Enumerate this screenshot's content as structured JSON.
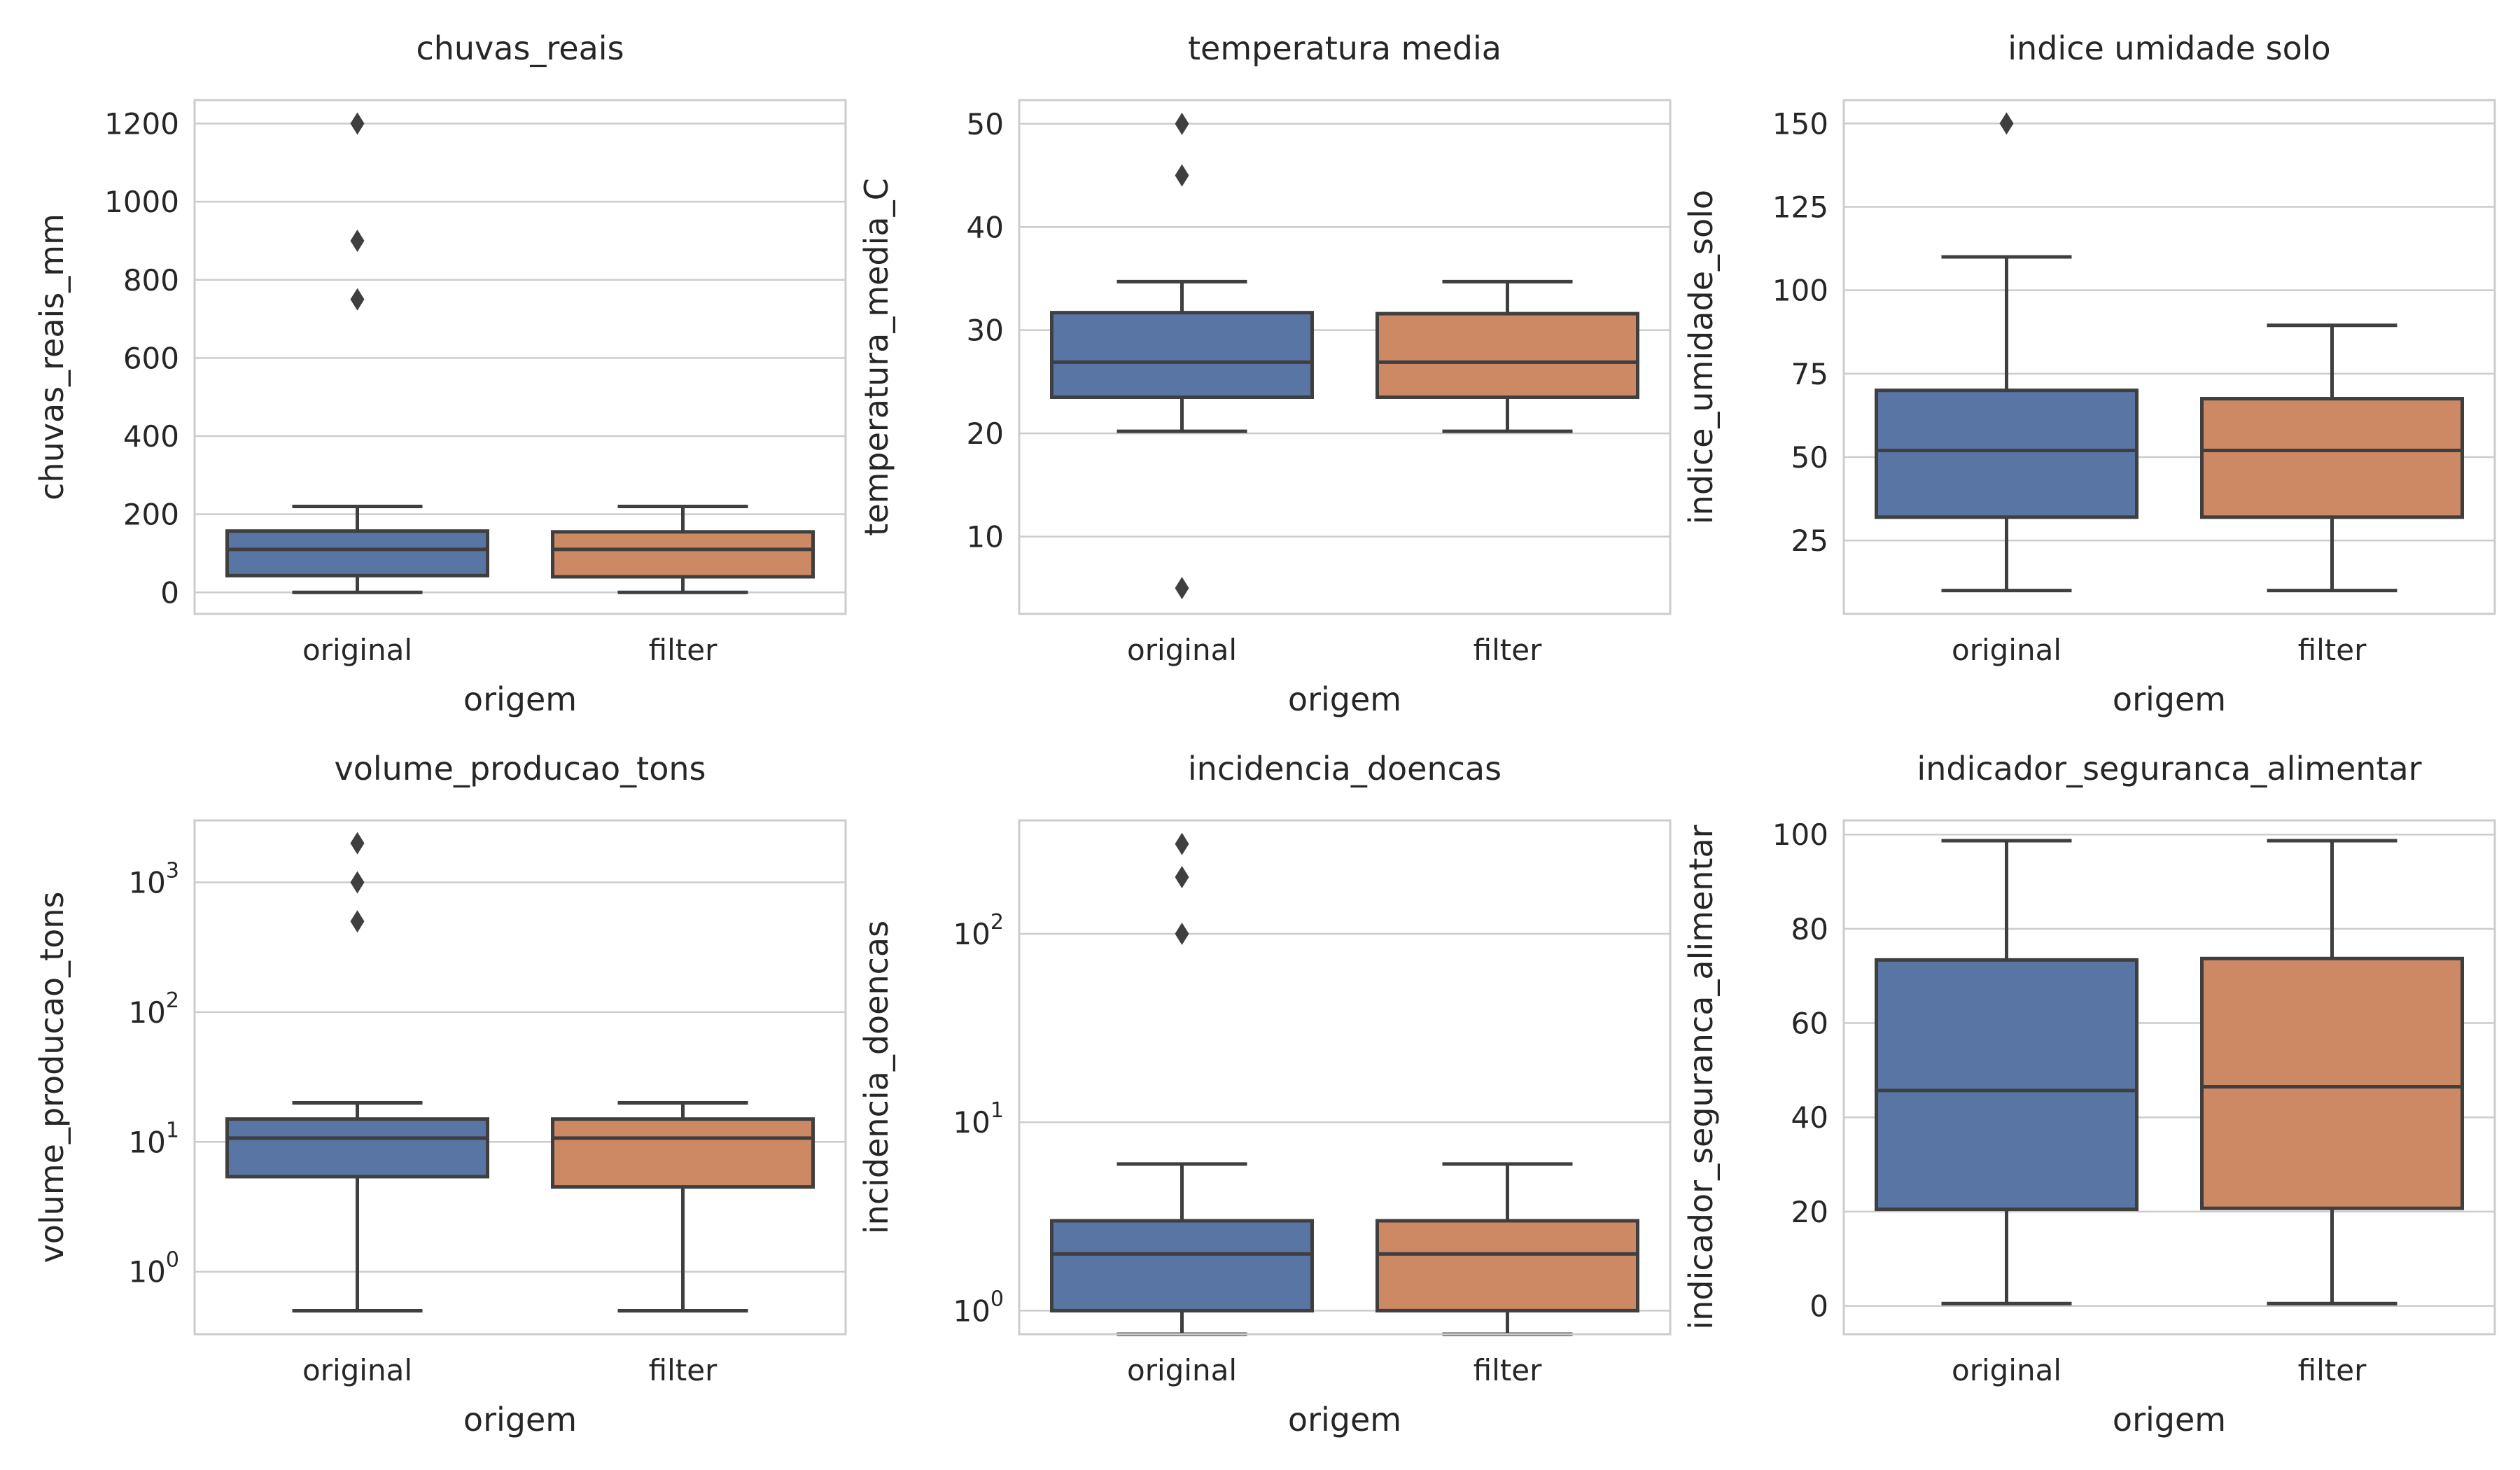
{
  "figure": {
    "colors": {
      "original": "#5875a4",
      "filter": "#cc8963",
      "edge": "#3f3f3f",
      "grid": "#cccccc",
      "frame": "#cccccc",
      "text": "#262626"
    }
  },
  "chart_data": [
    {
      "type": "box",
      "title": "chuvas_reais",
      "xlabel": "origem",
      "ylabel": "chuvas_reais_mm",
      "scale": "linear",
      "ylim": [
        -55,
        1260
      ],
      "yticks": [
        0,
        200,
        400,
        600,
        800,
        1000,
        1200
      ],
      "ytick_labels": [
        "0",
        "200",
        "400",
        "600",
        "800",
        "1000",
        "1200"
      ],
      "grid": true,
      "categories": [
        "original",
        "filter"
      ],
      "series": [
        {
          "category": "original",
          "whislo": 0,
          "q1": 43,
          "median": 110,
          "q3": 157,
          "whishi": 220,
          "fliers": [
            750,
            900,
            1200
          ]
        },
        {
          "category": "filter",
          "whislo": 0,
          "q1": 40,
          "median": 110,
          "q3": 155,
          "whishi": 220,
          "fliers": []
        }
      ]
    },
    {
      "type": "box",
      "title": "temperatura media",
      "xlabel": "origem",
      "ylabel": "temperatura_media_C",
      "scale": "linear",
      "ylim": [
        2.5,
        52.3
      ],
      "yticks": [
        10,
        20,
        30,
        40,
        50
      ],
      "ytick_labels": [
        "10",
        "20",
        "30",
        "40",
        "50"
      ],
      "grid": true,
      "categories": [
        "original",
        "filter"
      ],
      "series": [
        {
          "category": "original",
          "whislo": 20.2,
          "q1": 23.5,
          "median": 26.9,
          "q3": 31.7,
          "whishi": 34.7,
          "fliers": [
            5,
            45,
            50
          ]
        },
        {
          "category": "filter",
          "whislo": 20.2,
          "q1": 23.5,
          "median": 26.9,
          "q3": 31.6,
          "whishi": 34.7,
          "fliers": []
        }
      ]
    },
    {
      "type": "box",
      "title": "indice umidade solo",
      "xlabel": "origem",
      "ylabel": "indice_umidade_solo",
      "scale": "linear",
      "ylim": [
        3,
        157
      ],
      "yticks": [
        25,
        50,
        75,
        100,
        125,
        150
      ],
      "ytick_labels": [
        "25",
        "50",
        "75",
        "100",
        "125",
        "150"
      ],
      "grid": true,
      "categories": [
        "original",
        "filter"
      ],
      "series": [
        {
          "category": "original",
          "whislo": 10,
          "q1": 32,
          "median": 52,
          "q3": 70,
          "whishi": 110,
          "fliers": [
            150
          ]
        },
        {
          "category": "filter",
          "whislo": 10,
          "q1": 32,
          "median": 52,
          "q3": 67.5,
          "whishi": 89.5,
          "fliers": []
        }
      ]
    },
    {
      "type": "box",
      "title": "volume_producao_tons",
      "xlabel": "origem",
      "ylabel": "volume_producao_tons",
      "scale": "log",
      "ylim": [
        0.33,
        3000
      ],
      "yticks": [
        1,
        10,
        100,
        1000
      ],
      "ytick_labels": [
        "10^0",
        "10^1",
        "10^2",
        "10^3"
      ],
      "ytick_base": [
        "10",
        "10",
        "10",
        "10"
      ],
      "ytick_exp": [
        "0",
        "1",
        "2",
        "3"
      ],
      "grid": true,
      "categories": [
        "original",
        "filter"
      ],
      "series": [
        {
          "category": "original",
          "whislo": 0.5,
          "q1": 5.4,
          "median": 10.7,
          "q3": 15,
          "whishi": 20,
          "fliers": [
            500,
            1000,
            2000
          ]
        },
        {
          "category": "filter",
          "whislo": 0.5,
          "q1": 4.5,
          "median": 10.7,
          "q3": 15,
          "whishi": 20,
          "fliers": []
        }
      ]
    },
    {
      "type": "box",
      "title": "incidencia_doencas",
      "xlabel": "origem",
      "ylabel": "incidencia_doencas",
      "scale": "log",
      "ylim": [
        0.75,
        400
      ],
      "yticks": [
        1,
        10,
        100
      ],
      "ytick_labels": [
        "10^0",
        "10^1",
        "10^2"
      ],
      "ytick_base": [
        "10",
        "10",
        "10"
      ],
      "ytick_exp": [
        "0",
        "1",
        "2"
      ],
      "grid": true,
      "categories": [
        "original",
        "filter"
      ],
      "series": [
        {
          "category": "original",
          "whislo": 0.75,
          "q1": 1,
          "median": 2,
          "q3": 3,
          "whishi": 6,
          "fliers": [
            100,
            200,
            300
          ]
        },
        {
          "category": "filter",
          "whislo": 0.75,
          "q1": 1,
          "median": 2,
          "q3": 3,
          "whishi": 6,
          "fliers": []
        }
      ]
    },
    {
      "type": "box",
      "title": "indicador_seguranca_alimentar",
      "xlabel": "origem",
      "ylabel": "indicador_seguranca_alimentar",
      "scale": "linear",
      "ylim": [
        -6,
        103
      ],
      "yticks": [
        0,
        20,
        40,
        60,
        80,
        100
      ],
      "ytick_labels": [
        "0",
        "20",
        "40",
        "60",
        "80",
        "100"
      ],
      "grid": true,
      "categories": [
        "original",
        "filter"
      ],
      "series": [
        {
          "category": "original",
          "whislo": 0.5,
          "q1": 20.5,
          "median": 45.7,
          "q3": 73.4,
          "whishi": 98.7,
          "fliers": []
        },
        {
          "category": "filter",
          "whislo": 0.5,
          "q1": 20.7,
          "median": 46.5,
          "q3": 73.7,
          "whishi": 98.7,
          "fliers": []
        }
      ]
    }
  ]
}
